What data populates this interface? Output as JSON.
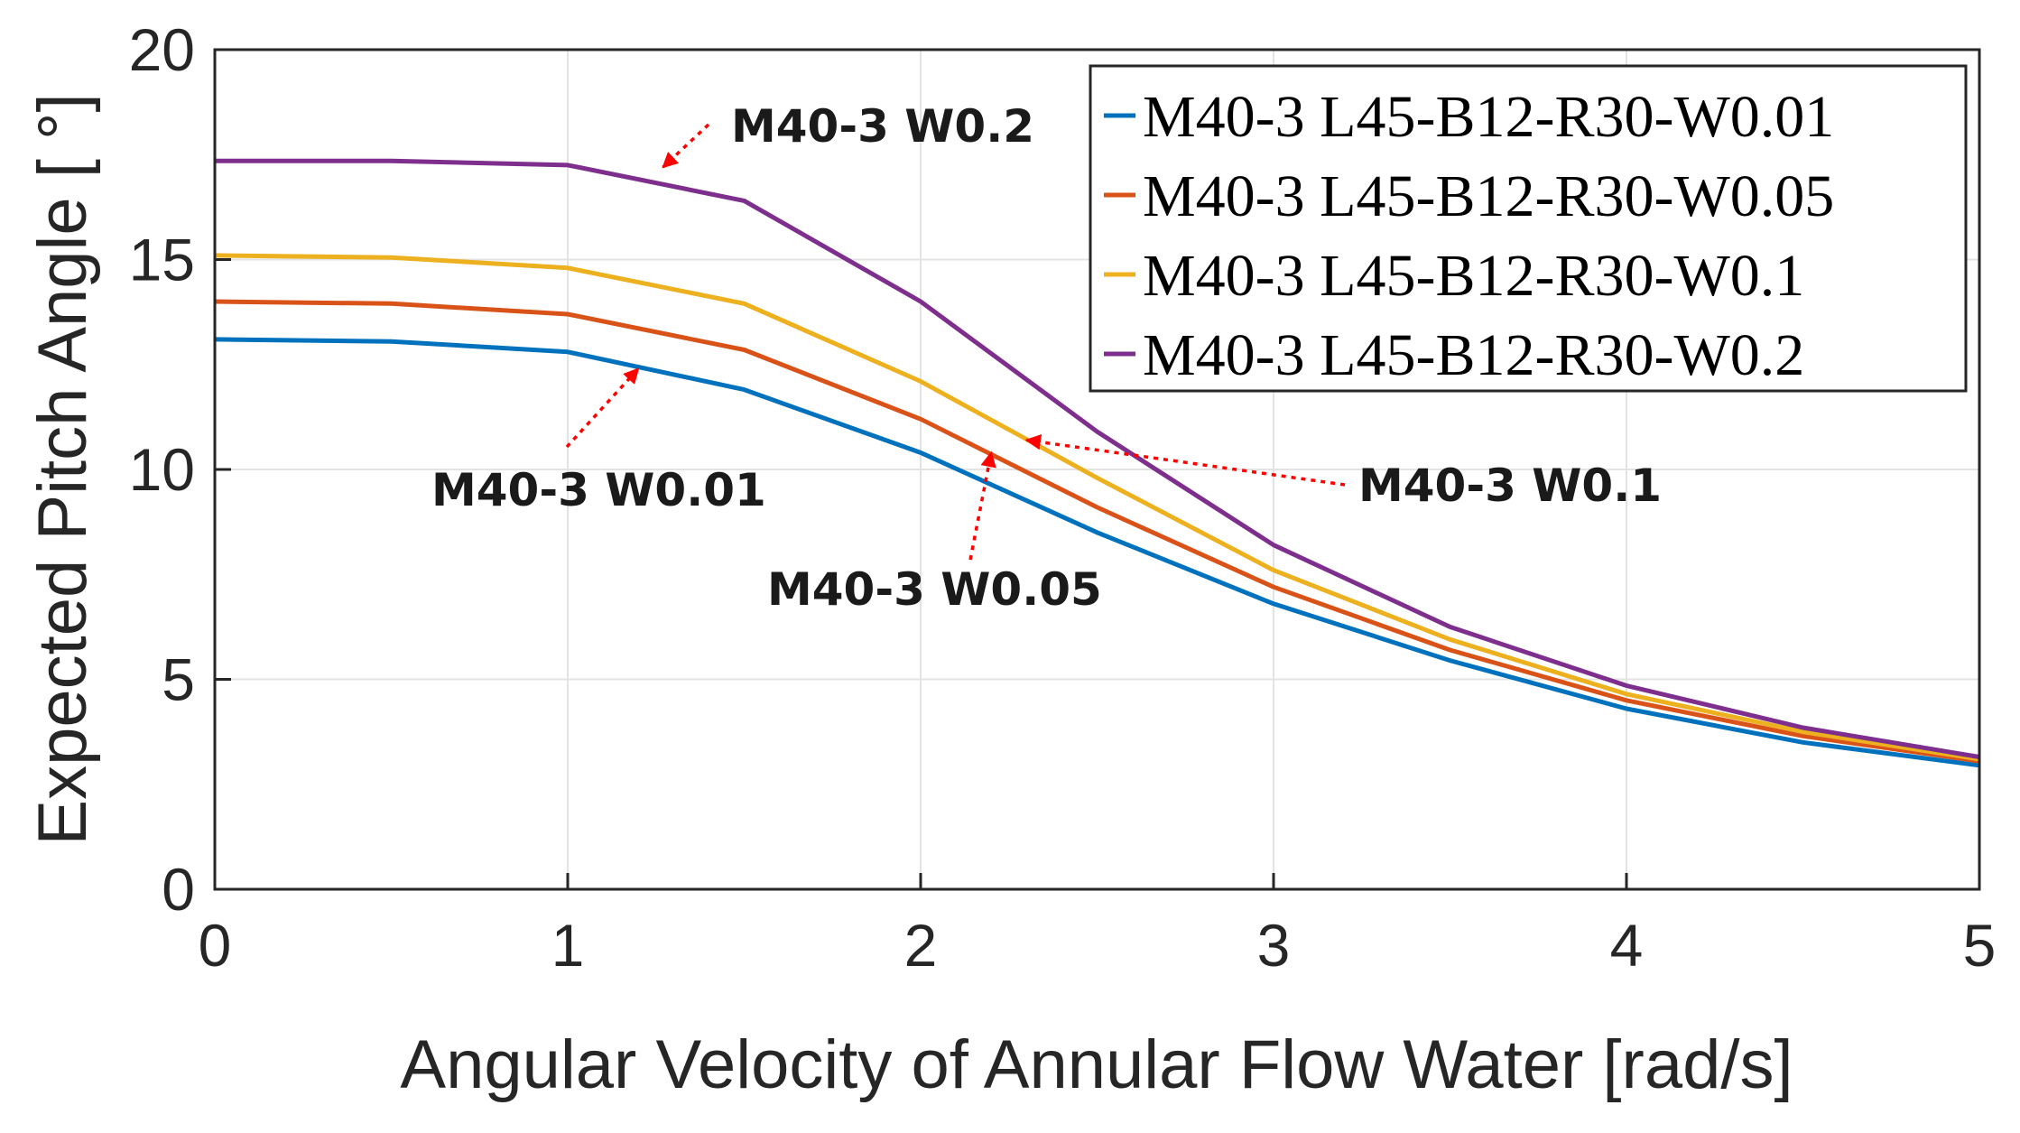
{
  "chart_data": {
    "type": "line",
    "xlabel": "Angular Velocity of Annular Flow Water [rad/s]",
    "ylabel": "Expected Pitch Angle [ °]",
    "xlim": [
      0,
      5
    ],
    "ylim": [
      0,
      20
    ],
    "xticks": [
      0,
      1,
      2,
      3,
      4,
      5
    ],
    "yticks": [
      0,
      5,
      10,
      15,
      20
    ],
    "grid": true,
    "legend_position": "top-right",
    "x": [
      0,
      0.5,
      1,
      1.5,
      2,
      2.5,
      3,
      3.5,
      4,
      4.5,
      5
    ],
    "series": [
      {
        "name": "M40-3 L45-B12-R30-W0.01",
        "color": "#0072BD",
        "values": [
          13.1,
          13.05,
          12.8,
          11.9,
          10.4,
          8.5,
          6.8,
          5.45,
          4.3,
          3.5,
          2.95
        ]
      },
      {
        "name": "M40-3 L45-B12-R30-W0.05",
        "color": "#D95319",
        "values": [
          14.0,
          13.95,
          13.7,
          12.85,
          11.2,
          9.1,
          7.2,
          5.7,
          4.5,
          3.65,
          3.05
        ]
      },
      {
        "name": "M40-3 L45-B12-R30-W0.1",
        "color": "#EDB120",
        "values": [
          15.1,
          15.05,
          14.8,
          13.95,
          12.1,
          9.8,
          7.6,
          5.95,
          4.65,
          3.75,
          3.1
        ]
      },
      {
        "name": "M40-3 L45-B12-R30-W0.2",
        "color": "#7E2F8E",
        "values": [
          17.35,
          17.35,
          17.25,
          16.4,
          14.0,
          10.9,
          8.2,
          6.25,
          4.85,
          3.85,
          3.15
        ]
      }
    ],
    "annotations": [
      {
        "text": "M40-3 W0.2",
        "arrow_to": {
          "x": 1.27,
          "y": 17.2
        }
      },
      {
        "text": "M40-3 W0.01",
        "arrow_to": {
          "x": 1.2,
          "y": 12.4
        }
      },
      {
        "text": "M40-3 W0.1",
        "arrow_to": {
          "x": 2.3,
          "y": 10.7
        }
      },
      {
        "text": "M40-3 W0.05",
        "arrow_to": {
          "x": 2.2,
          "y": 10.4
        }
      }
    ],
    "annotation_color": "#FF0000"
  }
}
